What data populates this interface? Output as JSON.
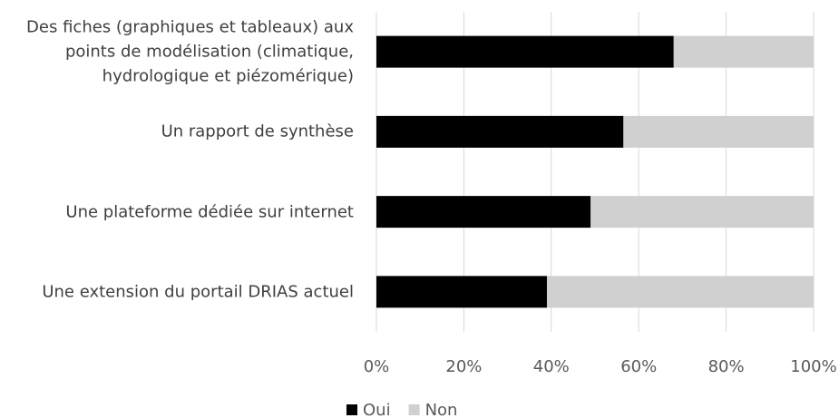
{
  "chart_data": {
    "type": "stacked-barh",
    "categories": [
      "Des fiches (graphiques et tableaux) aux\npoints de modélisation (climatique,\nhydrologique et piézomérique)",
      "Un rapport de synthèse",
      "Une plateforme dédiée sur internet",
      "Une extension du portail DRIAS actuel"
    ],
    "series": [
      {
        "name": "Oui",
        "color": "#000000",
        "values": [
          68,
          56.5,
          49,
          39
        ]
      },
      {
        "name": "Non",
        "color": "#d0d0d0",
        "values": [
          32,
          43.5,
          51,
          61
        ]
      }
    ],
    "xlim": [
      0,
      100
    ],
    "xticks": [
      {
        "value": 0,
        "label": "0%"
      },
      {
        "value": 20,
        "label": "20%"
      },
      {
        "value": 40,
        "label": "40%"
      },
      {
        "value": 60,
        "label": "60%"
      },
      {
        "value": 80,
        "label": "80%"
      },
      {
        "value": 100,
        "label": "100%"
      }
    ],
    "grid": true,
    "legend": "bottom"
  }
}
